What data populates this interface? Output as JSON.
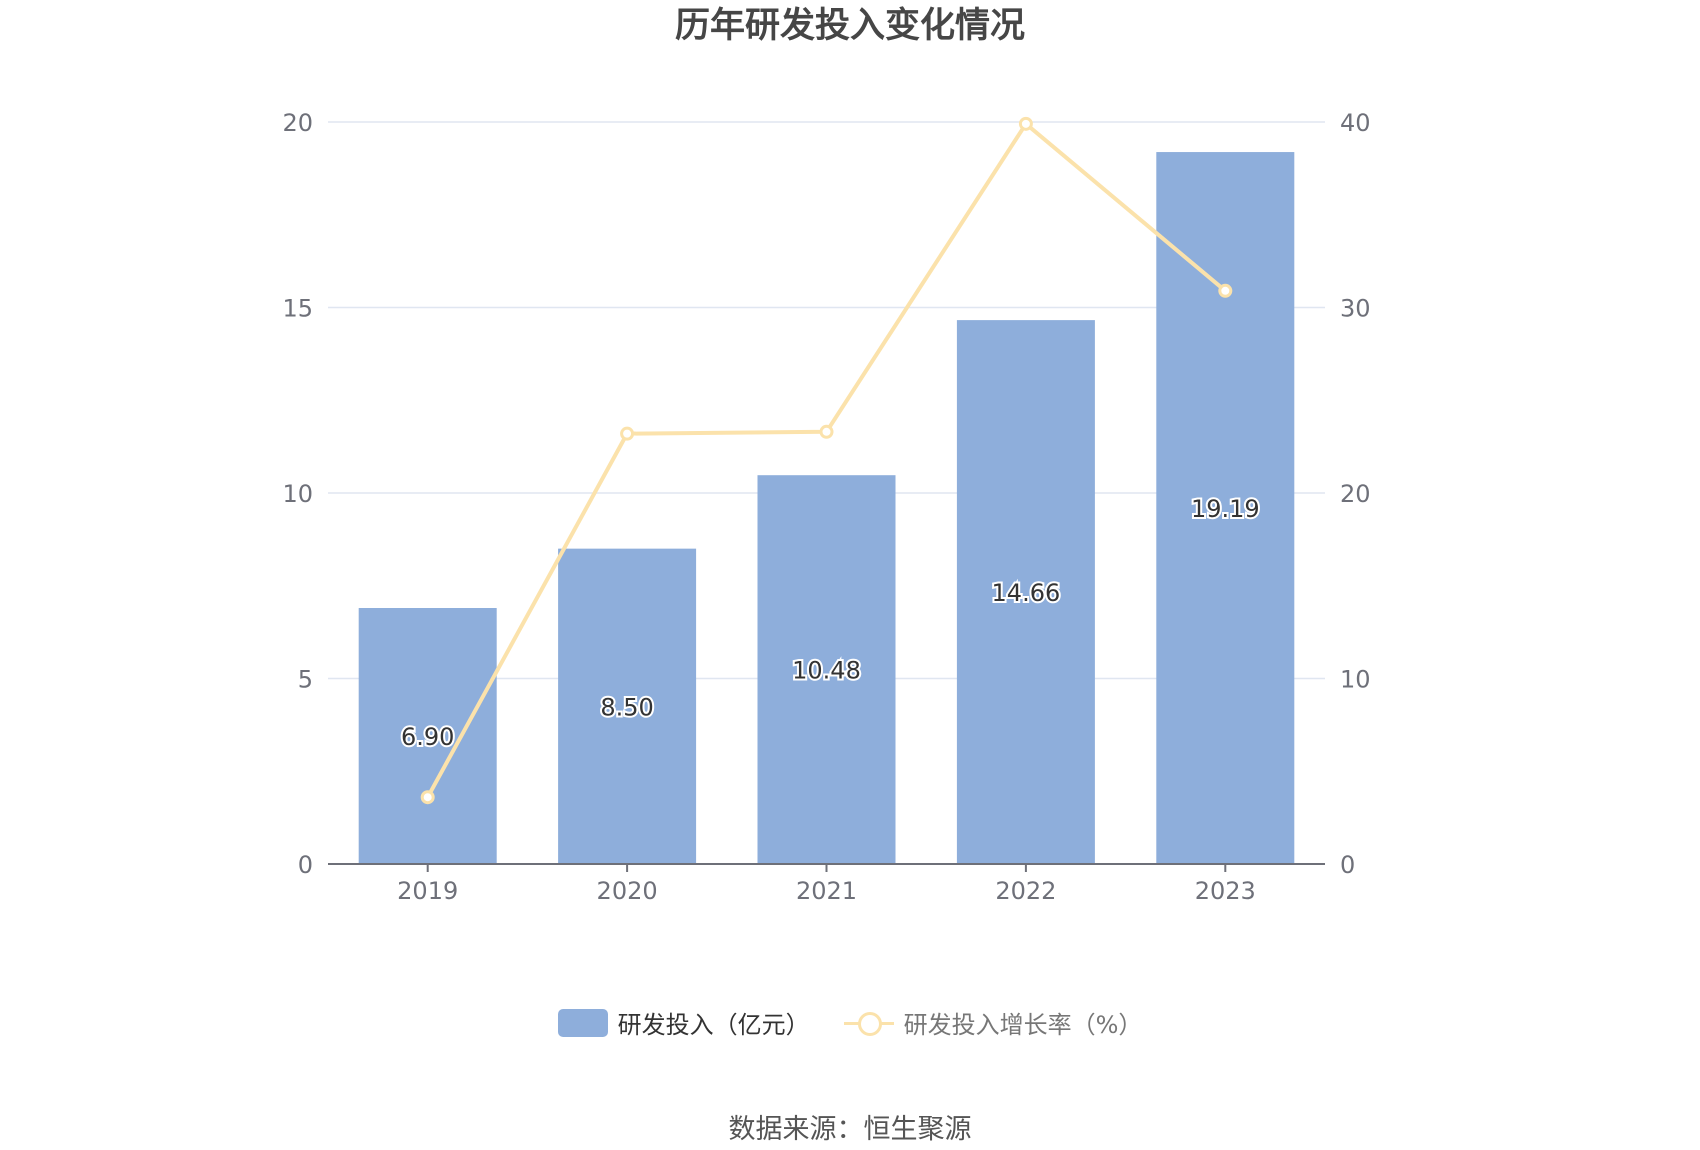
{
  "chart_data": {
    "type": "bar",
    "title": "历年研发投入变化情况",
    "categories": [
      "2019",
      "2020",
      "2021",
      "2022",
      "2023"
    ],
    "series": [
      {
        "name": "研发投入（亿元）",
        "type": "bar",
        "axis": "left",
        "values": [
          6.9,
          8.5,
          10.48,
          14.66,
          19.19
        ],
        "labels": [
          "6.90",
          "8.50",
          "10.48",
          "14.66",
          "19.19"
        ],
        "color": "#8eaedb"
      },
      {
        "name": "研发投入增长率（%）",
        "type": "line",
        "axis": "right",
        "values": [
          3.6,
          23.2,
          23.3,
          39.9,
          30.9
        ],
        "color": "#fbe2ab"
      }
    ],
    "y_left": {
      "min": 0,
      "max": 20,
      "ticks": [
        "0",
        "5",
        "10",
        "15",
        "20"
      ]
    },
    "y_right": {
      "min": 0,
      "max": 40,
      "ticks": [
        "0",
        "10",
        "20",
        "30",
        "40"
      ]
    },
    "grid": true,
    "legend_position": "bottom"
  },
  "source": "数据来源：恒生聚源",
  "colors": {
    "grid": "#e0e6f1",
    "axis": "#6e7079",
    "tick_text": "#6e7079",
    "label_text": "#333333"
  }
}
